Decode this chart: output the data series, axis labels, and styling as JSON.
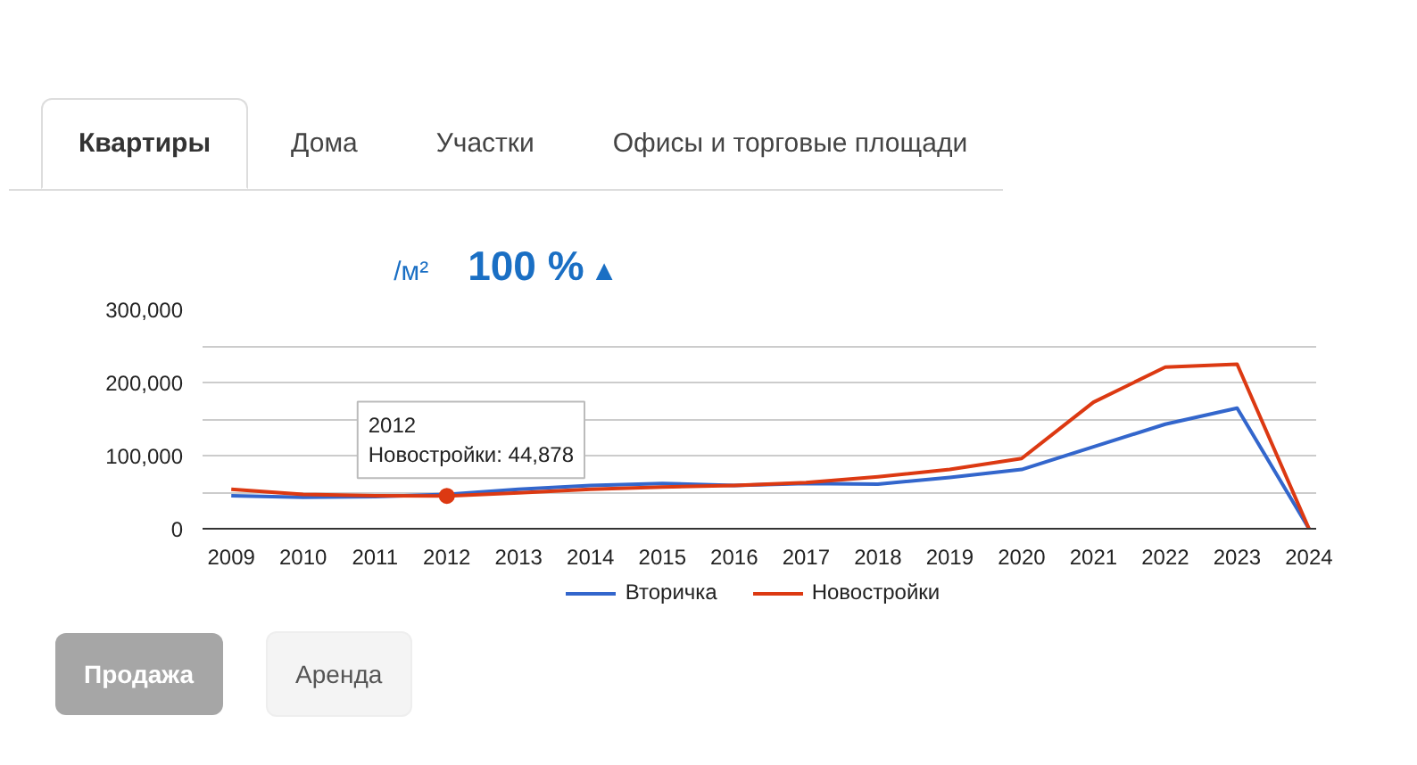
{
  "chart_data": {
    "type": "line",
    "x": [
      2009,
      2010,
      2011,
      2012,
      2013,
      2014,
      2015,
      2016,
      2017,
      2018,
      2019,
      2020,
      2021,
      2022,
      2023,
      2024
    ],
    "series": [
      {
        "name": "Вторичка",
        "color": "#3366cc",
        "values": [
          45000,
          43000,
          44000,
          47000,
          54000,
          59000,
          62000,
          59000,
          62000,
          61000,
          70000,
          81000,
          112000,
          143000,
          165000,
          0
        ]
      },
      {
        "name": "Новостройки",
        "color": "#dc3912",
        "values": [
          54000,
          47000,
          45000,
          44878,
          49000,
          54000,
          57000,
          59000,
          63000,
          71000,
          81000,
          96000,
          173000,
          221000,
          225000,
          0
        ]
      }
    ],
    "xlim": [
      2008.6,
      2024.1
    ],
    "xticks": [
      2009,
      2010,
      2011,
      2012,
      2013,
      2014,
      2015,
      2016,
      2017,
      2018,
      2019,
      2020,
      2021,
      2022,
      2023,
      2024
    ],
    "ylim": [
      0,
      300000
    ],
    "yticks": [
      {
        "value": 0,
        "label": "0"
      },
      {
        "value": 50000,
        "label": null
      },
      {
        "value": 100000,
        "label": "100,000"
      },
      {
        "value": 150000,
        "label": null
      },
      {
        "value": 200000,
        "label": "200,000"
      },
      {
        "value": 250000,
        "label": null
      },
      {
        "value": 300000,
        "label": "300,000"
      }
    ],
    "grid": "y",
    "legend": "bottom",
    "marker": "none",
    "line_style": "solid",
    "annotations": [
      "Квартиры",
      "Дома",
      "Участки",
      "Офисы и торговые площади",
      "/м²",
      "100 %",
      "▲",
      "Продажа",
      "Аренда",
      {
        "text": "2012\nНовостройки: 44,878",
        "x": 2012,
        "y": 44878
      }
    ]
  }
}
